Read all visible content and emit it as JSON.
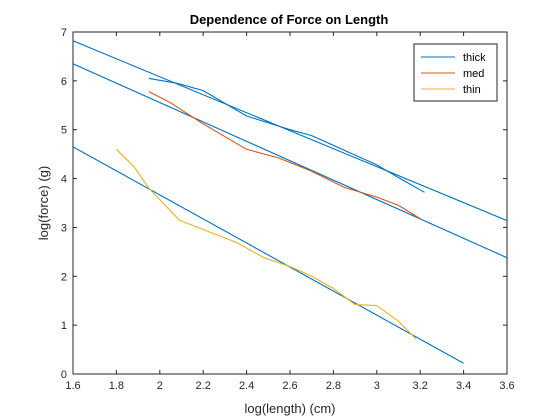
{
  "chart_data": {
    "type": "line",
    "title": "Dependence of Force on Length",
    "xlabel": "log(length) (cm)",
    "ylabel": "log(force) (g)",
    "xlim": [
      1.6,
      3.6
    ],
    "ylim": [
      0,
      7
    ],
    "x_ticks": [
      1.6,
      1.8,
      2,
      2.2,
      2.4,
      2.6,
      2.8,
      3,
      3.2,
      3.4,
      3.6
    ],
    "x_tick_labels": [
      "1.6",
      "1.8",
      "2",
      "2.2",
      "2.4",
      "2.6",
      "2.8",
      "3",
      "3.2",
      "3.4",
      "3.6"
    ],
    "y_ticks": [
      0,
      1,
      2,
      3,
      4,
      5,
      6,
      7
    ],
    "y_tick_labels": [
      "0",
      "1",
      "2",
      "3",
      "4",
      "5",
      "6",
      "7"
    ],
    "grid": false,
    "legend_position": "top-right",
    "series": [
      {
        "name": "thick",
        "color": "#0072BD",
        "x": [
          1.95,
          2.08,
          2.2,
          2.4,
          2.6,
          2.7,
          2.85,
          3.0,
          3.1,
          3.22
        ],
        "y": [
          6.05,
          5.95,
          5.8,
          5.28,
          5.0,
          4.88,
          4.58,
          4.28,
          4.02,
          3.72
        ]
      },
      {
        "name": "med",
        "color": "#D95319",
        "x": [
          1.95,
          2.05,
          2.2,
          2.4,
          2.55,
          2.7,
          2.85,
          3.0,
          3.1,
          3.2
        ],
        "y": [
          5.78,
          5.55,
          5.12,
          4.6,
          4.42,
          4.15,
          3.82,
          3.62,
          3.45,
          3.18
        ]
      },
      {
        "name": "thin",
        "color": "#EDB120",
        "x": [
          1.8,
          1.88,
          1.95,
          2.09,
          2.22,
          2.35,
          2.48,
          2.6,
          2.7,
          2.8,
          2.9,
          3.0,
          3.1,
          3.18
        ],
        "y": [
          4.6,
          4.25,
          3.8,
          3.15,
          2.92,
          2.7,
          2.38,
          2.2,
          2.0,
          1.75,
          1.42,
          1.4,
          1.08,
          0.72
        ]
      }
    ],
    "fit_lines": [
      {
        "color": "#0072BD",
        "x": [
          1.6,
          3.6
        ],
        "y": [
          6.82,
          3.14
        ]
      },
      {
        "color": "#0072BD",
        "x": [
          1.6,
          3.6
        ],
        "y": [
          6.35,
          2.38
        ]
      },
      {
        "color": "#0072BD",
        "x": [
          1.6,
          3.4
        ],
        "y": [
          4.65,
          0.22
        ]
      }
    ]
  }
}
